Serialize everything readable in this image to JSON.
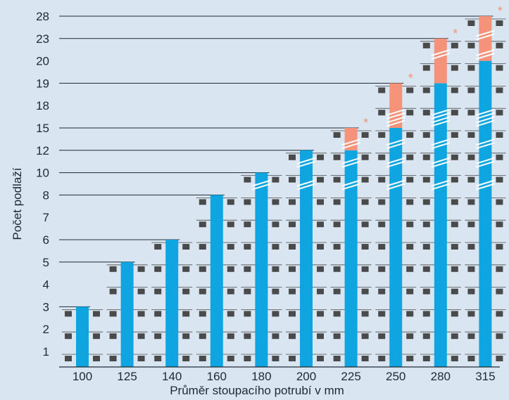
{
  "chart_data": {
    "type": "bar",
    "stacked": true,
    "title": "",
    "xlabel": "Průměr stoupacího potrubí v mm",
    "ylabel": "Počet podlaží",
    "categories": [
      "100",
      "125",
      "140",
      "160",
      "180",
      "200",
      "225",
      "250",
      "280",
      "315"
    ],
    "y_ticks": [
      "1",
      "2",
      "3",
      "4",
      "5",
      "6",
      "7",
      "8",
      "10",
      "12",
      "15",
      "18",
      "19",
      "20",
      "23",
      "28"
    ],
    "series": [
      {
        "values": [
          3,
          5,
          6,
          8,
          10,
          12,
          12,
          15,
          19,
          20
        ]
      },
      {
        "values": [
          0,
          0,
          0,
          0,
          0,
          0,
          3,
          4,
          4,
          8
        ]
      }
    ],
    "annotations": [
      {
        "category": "225",
        "text": "*"
      },
      {
        "category": "250",
        "text": "*"
      },
      {
        "category": "280",
        "text": "*"
      },
      {
        "category": "315",
        "text": "*"
      }
    ],
    "grid": "horizontal lines at bar tops",
    "legend": "none",
    "colors": {
      "background": "#d9e6f2",
      "bar": "#0ea5e0",
      "extra": "#f4937a",
      "floor_block": "#4a4a4a",
      "line": "#1e2a33",
      "star": "#f4937a"
    }
  }
}
